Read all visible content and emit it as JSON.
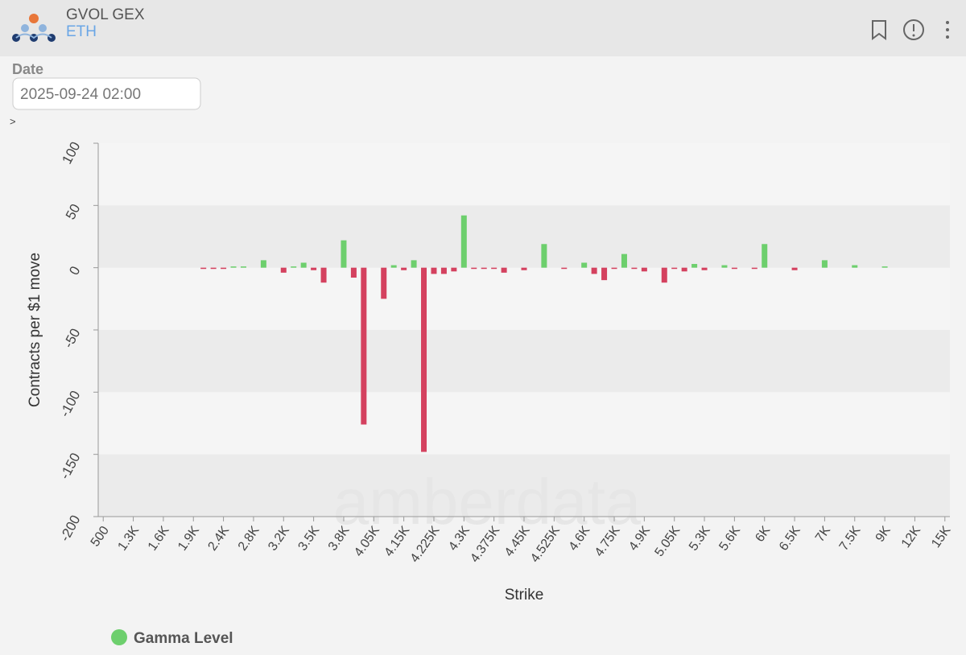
{
  "header": {
    "title": "GVOL GEX",
    "subtitle": "ETH"
  },
  "filter": {
    "label": "Date",
    "value": "2025-09-24 02:00",
    "toggle": ">"
  },
  "chart_data": {
    "type": "bar",
    "watermark": "amberdata",
    "xlabel": "Strike",
    "ylabel": "Contracts per $1 move",
    "categories": [
      "500",
      null,
      null,
      "1.3K",
      null,
      null,
      "1.6K",
      null,
      null,
      "1.9K",
      null,
      null,
      "2.4K",
      null,
      null,
      "2.8K",
      null,
      null,
      "3.2K",
      null,
      null,
      "3.5K",
      null,
      null,
      "3.8K",
      null,
      null,
      "4.05K",
      null,
      null,
      "4.15K",
      null,
      null,
      "4.225K",
      null,
      null,
      "4.3K",
      null,
      null,
      "4.375K",
      null,
      null,
      "4.45K",
      null,
      null,
      "4.525K",
      null,
      null,
      "4.6K",
      null,
      null,
      "4.75K",
      null,
      null,
      "4.9K",
      null,
      null,
      "5.05K",
      null,
      null,
      "5.3K",
      null,
      null,
      "5.6K",
      null,
      null,
      "6K",
      null,
      null,
      "6.5K",
      null,
      null,
      "7K",
      null,
      null,
      "7.5K",
      null,
      null,
      "9K",
      null,
      null,
      "12K",
      null,
      null,
      "15K"
    ],
    "series": [
      {
        "name": "Gamma Level",
        "color": "#6dcf6d",
        "negative_color": "#d4415f",
        "values": [
          null,
          null,
          null,
          null,
          null,
          null,
          null,
          null,
          null,
          null,
          -1,
          -1,
          -1,
          1,
          1,
          null,
          6,
          null,
          -4,
          1,
          4,
          -2,
          -12,
          null,
          22,
          -8,
          -126,
          null,
          -25,
          2,
          -2,
          6,
          -148,
          -5,
          -5,
          -3,
          42,
          -1,
          -1,
          -1,
          -4,
          null,
          -2,
          null,
          19,
          null,
          -1,
          null,
          4,
          -5,
          -10,
          -1,
          11,
          -1,
          -3,
          null,
          -12,
          -1,
          -3,
          3,
          -2,
          null,
          2,
          -1,
          null,
          -1,
          19,
          null,
          null,
          -2,
          null,
          null,
          6,
          null,
          null,
          2,
          null,
          null,
          1,
          null,
          null,
          null,
          null,
          null,
          null
        ]
      }
    ],
    "ylim": [
      -200,
      100
    ],
    "yticks": [
      -200,
      -150,
      -100,
      -50,
      0,
      50,
      100
    ],
    "grid_bands": true,
    "legend": "bottom-left"
  }
}
